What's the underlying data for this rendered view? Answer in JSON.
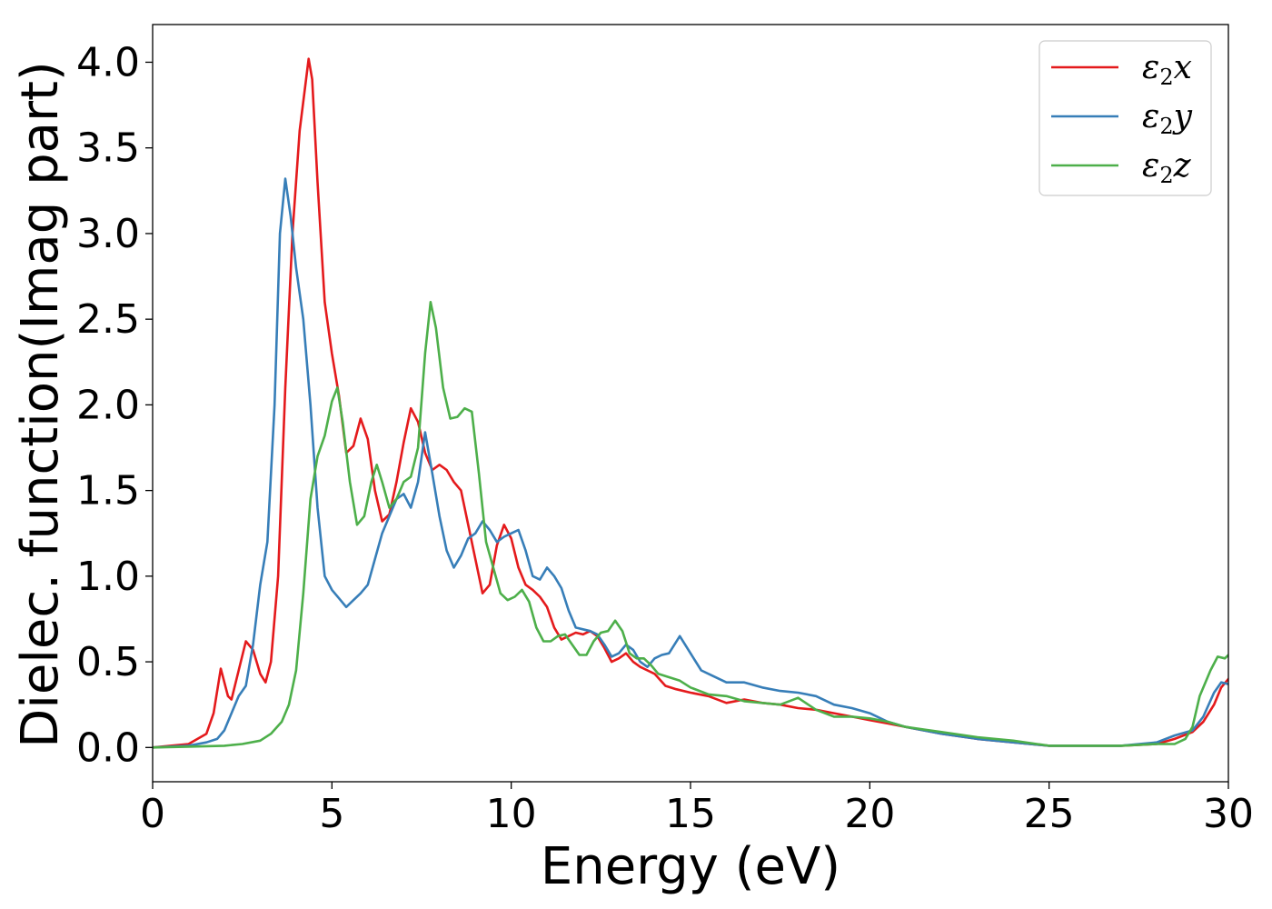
{
  "chart_data": {
    "type": "line",
    "xlabel": "Energy (eV)",
    "ylabel": "Dielec. function(Imag part)",
    "xlim": [
      0,
      30
    ],
    "ylim": [
      -0.2,
      4.22
    ],
    "x_ticks": [
      "0",
      "5",
      "10",
      "15",
      "20",
      "25",
      "30"
    ],
    "y_ticks": [
      "0.0",
      "0.5",
      "1.0",
      "1.5",
      "2.0",
      "2.5",
      "3.0",
      "3.5",
      "4.0"
    ],
    "grid": false,
    "legend_position": "top-right",
    "series": [
      {
        "name": "ε2x",
        "legend_base": "ε",
        "legend_sub": "2",
        "legend_var": "x",
        "color": "#e41a1c",
        "points": [
          [
            0,
            0
          ],
          [
            0.5,
            0.01
          ],
          [
            1.0,
            0.02
          ],
          [
            1.5,
            0.08
          ],
          [
            1.7,
            0.2
          ],
          [
            1.9,
            0.46
          ],
          [
            2.1,
            0.3
          ],
          [
            2.2,
            0.28
          ],
          [
            2.4,
            0.45
          ],
          [
            2.6,
            0.62
          ],
          [
            2.8,
            0.57
          ],
          [
            3.0,
            0.43
          ],
          [
            3.15,
            0.38
          ],
          [
            3.3,
            0.5
          ],
          [
            3.5,
            1.0
          ],
          [
            3.7,
            2.1
          ],
          [
            3.9,
            3.0
          ],
          [
            4.1,
            3.6
          ],
          [
            4.25,
            3.85
          ],
          [
            4.35,
            4.02
          ],
          [
            4.45,
            3.9
          ],
          [
            4.6,
            3.3
          ],
          [
            4.8,
            2.6
          ],
          [
            5.0,
            2.3
          ],
          [
            5.2,
            2.05
          ],
          [
            5.4,
            1.72
          ],
          [
            5.6,
            1.76
          ],
          [
            5.8,
            1.92
          ],
          [
            6.0,
            1.8
          ],
          [
            6.2,
            1.5
          ],
          [
            6.4,
            1.32
          ],
          [
            6.6,
            1.36
          ],
          [
            6.8,
            1.55
          ],
          [
            7.0,
            1.78
          ],
          [
            7.2,
            1.98
          ],
          [
            7.4,
            1.9
          ],
          [
            7.6,
            1.72
          ],
          [
            7.8,
            1.62
          ],
          [
            8.0,
            1.65
          ],
          [
            8.2,
            1.62
          ],
          [
            8.4,
            1.55
          ],
          [
            8.6,
            1.5
          ],
          [
            8.8,
            1.3
          ],
          [
            9.0,
            1.1
          ],
          [
            9.2,
            0.9
          ],
          [
            9.4,
            0.95
          ],
          [
            9.6,
            1.18
          ],
          [
            9.8,
            1.3
          ],
          [
            10.0,
            1.22
          ],
          [
            10.2,
            1.05
          ],
          [
            10.4,
            0.95
          ],
          [
            10.6,
            0.92
          ],
          [
            10.8,
            0.88
          ],
          [
            11.0,
            0.82
          ],
          [
            11.2,
            0.7
          ],
          [
            11.4,
            0.63
          ],
          [
            11.6,
            0.65
          ],
          [
            11.8,
            0.67
          ],
          [
            12.0,
            0.66
          ],
          [
            12.2,
            0.68
          ],
          [
            12.4,
            0.65
          ],
          [
            12.6,
            0.58
          ],
          [
            12.8,
            0.5
          ],
          [
            13.0,
            0.52
          ],
          [
            13.2,
            0.55
          ],
          [
            13.4,
            0.5
          ],
          [
            13.6,
            0.47
          ],
          [
            13.8,
            0.45
          ],
          [
            14.0,
            0.43
          ],
          [
            14.3,
            0.36
          ],
          [
            14.6,
            0.34
          ],
          [
            15.0,
            0.32
          ],
          [
            15.5,
            0.3
          ],
          [
            16.0,
            0.26
          ],
          [
            16.5,
            0.28
          ],
          [
            17.0,
            0.26
          ],
          [
            17.5,
            0.25
          ],
          [
            18.0,
            0.23
          ],
          [
            18.5,
            0.22
          ],
          [
            19.0,
            0.2
          ],
          [
            19.5,
            0.18
          ],
          [
            20.0,
            0.16
          ],
          [
            20.5,
            0.14
          ],
          [
            21.0,
            0.12
          ],
          [
            22.0,
            0.08
          ],
          [
            23.0,
            0.05
          ],
          [
            24.0,
            0.03
          ],
          [
            25.0,
            0.01
          ],
          [
            26.0,
            0.01
          ],
          [
            27.0,
            0.01
          ],
          [
            28.0,
            0.02
          ],
          [
            28.5,
            0.05
          ],
          [
            29.0,
            0.09
          ],
          [
            29.3,
            0.15
          ],
          [
            29.6,
            0.25
          ],
          [
            29.8,
            0.35
          ],
          [
            30.0,
            0.4
          ]
        ]
      },
      {
        "name": "ε2y",
        "legend_base": "ε",
        "legend_sub": "2",
        "legend_var": "y",
        "color": "#377eb8",
        "points": [
          [
            0,
            0
          ],
          [
            1.0,
            0.01
          ],
          [
            1.5,
            0.03
          ],
          [
            1.8,
            0.05
          ],
          [
            2.0,
            0.1
          ],
          [
            2.2,
            0.2
          ],
          [
            2.4,
            0.3
          ],
          [
            2.6,
            0.36
          ],
          [
            2.8,
            0.6
          ],
          [
            3.0,
            0.95
          ],
          [
            3.2,
            1.2
          ],
          [
            3.4,
            2.0
          ],
          [
            3.55,
            3.0
          ],
          [
            3.7,
            3.32
          ],
          [
            3.85,
            3.1
          ],
          [
            4.0,
            2.8
          ],
          [
            4.2,
            2.5
          ],
          [
            4.4,
            2.0
          ],
          [
            4.6,
            1.4
          ],
          [
            4.8,
            1.0
          ],
          [
            5.0,
            0.92
          ],
          [
            5.2,
            0.87
          ],
          [
            5.4,
            0.82
          ],
          [
            5.6,
            0.86
          ],
          [
            5.8,
            0.9
          ],
          [
            6.0,
            0.95
          ],
          [
            6.2,
            1.1
          ],
          [
            6.4,
            1.25
          ],
          [
            6.6,
            1.35
          ],
          [
            6.8,
            1.45
          ],
          [
            7.0,
            1.48
          ],
          [
            7.2,
            1.4
          ],
          [
            7.4,
            1.55
          ],
          [
            7.6,
            1.84
          ],
          [
            7.8,
            1.6
          ],
          [
            8.0,
            1.35
          ],
          [
            8.2,
            1.15
          ],
          [
            8.4,
            1.05
          ],
          [
            8.6,
            1.12
          ],
          [
            8.8,
            1.22
          ],
          [
            9.0,
            1.25
          ],
          [
            9.2,
            1.32
          ],
          [
            9.4,
            1.27
          ],
          [
            9.6,
            1.2
          ],
          [
            9.8,
            1.23
          ],
          [
            10.0,
            1.25
          ],
          [
            10.2,
            1.27
          ],
          [
            10.4,
            1.15
          ],
          [
            10.6,
            1.0
          ],
          [
            10.8,
            0.98
          ],
          [
            11.0,
            1.05
          ],
          [
            11.2,
            1.0
          ],
          [
            11.4,
            0.93
          ],
          [
            11.6,
            0.8
          ],
          [
            11.8,
            0.7
          ],
          [
            12.0,
            0.69
          ],
          [
            12.2,
            0.68
          ],
          [
            12.4,
            0.66
          ],
          [
            12.6,
            0.6
          ],
          [
            12.8,
            0.53
          ],
          [
            13.0,
            0.55
          ],
          [
            13.2,
            0.6
          ],
          [
            13.4,
            0.57
          ],
          [
            13.6,
            0.5
          ],
          [
            13.8,
            0.47
          ],
          [
            14.0,
            0.52
          ],
          [
            14.2,
            0.54
          ],
          [
            14.4,
            0.55
          ],
          [
            14.7,
            0.65
          ],
          [
            15.0,
            0.55
          ],
          [
            15.3,
            0.45
          ],
          [
            15.6,
            0.42
          ],
          [
            16.0,
            0.38
          ],
          [
            16.5,
            0.38
          ],
          [
            17.0,
            0.35
          ],
          [
            17.5,
            0.33
          ],
          [
            18.0,
            0.32
          ],
          [
            18.5,
            0.3
          ],
          [
            19.0,
            0.25
          ],
          [
            19.5,
            0.23
          ],
          [
            20.0,
            0.2
          ],
          [
            20.5,
            0.15
          ],
          [
            21.0,
            0.12
          ],
          [
            21.5,
            0.1
          ],
          [
            22.0,
            0.08
          ],
          [
            23.0,
            0.05
          ],
          [
            24.0,
            0.03
          ],
          [
            25.0,
            0.01
          ],
          [
            26.0,
            0.01
          ],
          [
            27.0,
            0.01
          ],
          [
            28.0,
            0.03
          ],
          [
            28.5,
            0.07
          ],
          [
            29.0,
            0.1
          ],
          [
            29.3,
            0.18
          ],
          [
            29.6,
            0.32
          ],
          [
            29.8,
            0.38
          ],
          [
            30.0,
            0.37
          ]
        ]
      },
      {
        "name": "ε2z",
        "legend_base": "ε",
        "legend_sub": "2",
        "legend_var": "z",
        "color": "#4daf4a",
        "points": [
          [
            0,
            0
          ],
          [
            1.0,
            0.005
          ],
          [
            2.0,
            0.01
          ],
          [
            2.5,
            0.02
          ],
          [
            3.0,
            0.04
          ],
          [
            3.3,
            0.08
          ],
          [
            3.6,
            0.15
          ],
          [
            3.8,
            0.25
          ],
          [
            4.0,
            0.45
          ],
          [
            4.2,
            0.9
          ],
          [
            4.4,
            1.45
          ],
          [
            4.6,
            1.7
          ],
          [
            4.8,
            1.82
          ],
          [
            5.0,
            2.02
          ],
          [
            5.15,
            2.1
          ],
          [
            5.3,
            1.9
          ],
          [
            5.5,
            1.55
          ],
          [
            5.7,
            1.3
          ],
          [
            5.9,
            1.35
          ],
          [
            6.1,
            1.55
          ],
          [
            6.25,
            1.65
          ],
          [
            6.4,
            1.55
          ],
          [
            6.6,
            1.4
          ],
          [
            6.8,
            1.45
          ],
          [
            7.0,
            1.55
          ],
          [
            7.2,
            1.58
          ],
          [
            7.4,
            1.75
          ],
          [
            7.6,
            2.3
          ],
          [
            7.75,
            2.6
          ],
          [
            7.9,
            2.45
          ],
          [
            8.1,
            2.1
          ],
          [
            8.3,
            1.92
          ],
          [
            8.5,
            1.93
          ],
          [
            8.7,
            1.98
          ],
          [
            8.9,
            1.96
          ],
          [
            9.1,
            1.6
          ],
          [
            9.3,
            1.2
          ],
          [
            9.5,
            1.05
          ],
          [
            9.7,
            0.9
          ],
          [
            9.9,
            0.86
          ],
          [
            10.1,
            0.88
          ],
          [
            10.3,
            0.92
          ],
          [
            10.5,
            0.85
          ],
          [
            10.7,
            0.7
          ],
          [
            10.9,
            0.62
          ],
          [
            11.1,
            0.62
          ],
          [
            11.3,
            0.65
          ],
          [
            11.5,
            0.66
          ],
          [
            11.7,
            0.6
          ],
          [
            11.9,
            0.54
          ],
          [
            12.1,
            0.54
          ],
          [
            12.3,
            0.62
          ],
          [
            12.5,
            0.67
          ],
          [
            12.7,
            0.68
          ],
          [
            12.9,
            0.74
          ],
          [
            13.1,
            0.68
          ],
          [
            13.3,
            0.55
          ],
          [
            13.5,
            0.52
          ],
          [
            13.7,
            0.52
          ],
          [
            13.9,
            0.48
          ],
          [
            14.1,
            0.43
          ],
          [
            14.4,
            0.41
          ],
          [
            14.7,
            0.39
          ],
          [
            15.0,
            0.35
          ],
          [
            15.5,
            0.31
          ],
          [
            16.0,
            0.3
          ],
          [
            16.5,
            0.27
          ],
          [
            17.0,
            0.26
          ],
          [
            17.5,
            0.25
          ],
          [
            18.0,
            0.29
          ],
          [
            18.5,
            0.22
          ],
          [
            19.0,
            0.18
          ],
          [
            19.5,
            0.18
          ],
          [
            20.0,
            0.17
          ],
          [
            20.5,
            0.15
          ],
          [
            21.0,
            0.12
          ],
          [
            22.0,
            0.09
          ],
          [
            23.0,
            0.06
          ],
          [
            24.0,
            0.04
          ],
          [
            25.0,
            0.01
          ],
          [
            26.0,
            0.01
          ],
          [
            27.0,
            0.01
          ],
          [
            28.0,
            0.02
          ],
          [
            28.5,
            0.02
          ],
          [
            28.8,
            0.05
          ],
          [
            29.0,
            0.12
          ],
          [
            29.2,
            0.3
          ],
          [
            29.5,
            0.45
          ],
          [
            29.7,
            0.53
          ],
          [
            29.9,
            0.52
          ],
          [
            30.0,
            0.54
          ]
        ]
      }
    ]
  }
}
